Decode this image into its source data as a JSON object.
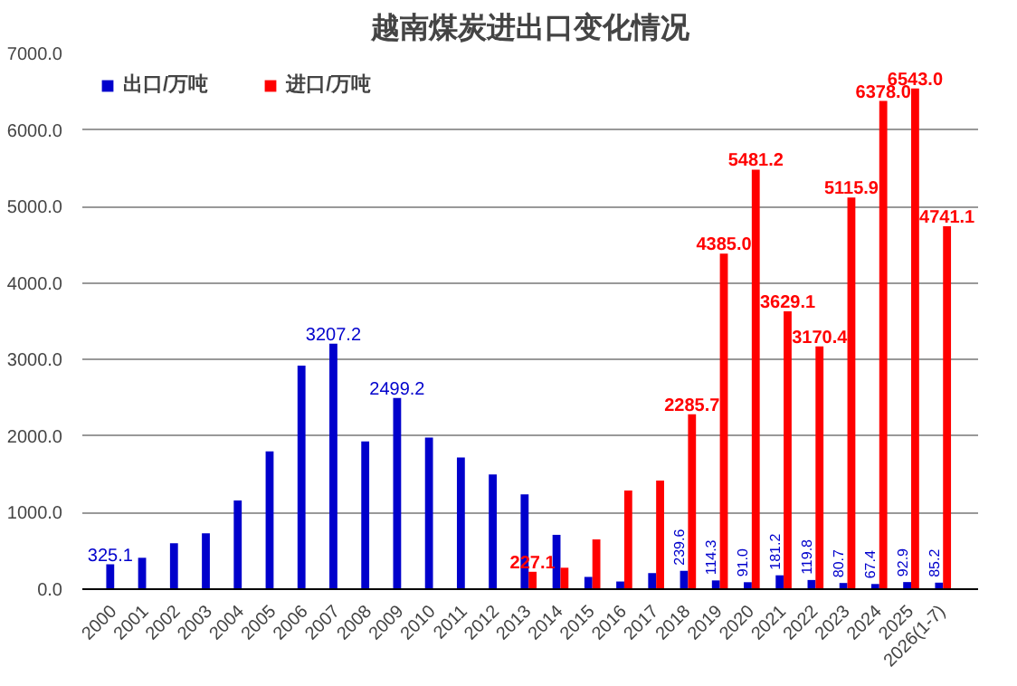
{
  "chart_data": {
    "type": "bar",
    "title": "越南煤炭进出口变化情况",
    "categories": [
      "2000",
      "2001",
      "2002",
      "2003",
      "2004",
      "2005",
      "2006",
      "2007",
      "2008",
      "2009",
      "2010",
      "2011",
      "2012",
      "2013",
      "2014",
      "2015",
      "2016",
      "2017",
      "2018",
      "2019",
      "2020",
      "2021",
      "2022",
      "2023",
      "2024",
      "2025",
      "2026(1-7)"
    ],
    "series": [
      {
        "name": "出口/万吨",
        "color": "#0000cc",
        "values": [
          325.1,
          410,
          600,
          730,
          1160,
          1800,
          2920,
          3207.2,
          1930,
          2499.2,
          1980,
          1720,
          1500,
          1240,
          710,
          160,
          100,
          210,
          239.6,
          114.3,
          91.0,
          181.2,
          119.8,
          80.7,
          67.4,
          92.9,
          85.2
        ],
        "value_labels": [
          "325.1",
          null,
          null,
          null,
          null,
          null,
          null,
          "3207.2",
          null,
          "2499.2",
          null,
          null,
          null,
          null,
          null,
          null,
          null,
          null,
          "239.6",
          "114.3",
          "91.0",
          "181.2",
          "119.8",
          "80.7",
          "67.4",
          "92.9",
          "85.2"
        ]
      },
      {
        "name": "进口/万吨",
        "color": "#ff0000",
        "values": [
          null,
          null,
          null,
          null,
          null,
          null,
          null,
          null,
          null,
          null,
          null,
          null,
          null,
          227.1,
          280,
          650,
          1290,
          1420,
          2285.7,
          4385.0,
          5481.2,
          3629.1,
          3170.4,
          5115.9,
          6378.0,
          6543.0,
          4741.1
        ],
        "value_labels": [
          null,
          null,
          null,
          null,
          null,
          null,
          null,
          null,
          null,
          null,
          null,
          null,
          null,
          "227.1",
          null,
          null,
          null,
          null,
          "2285.7",
          "4385.0",
          "5481.2",
          "3629.1",
          "3170.4",
          "5115.9",
          "6378.0",
          "6543.0",
          "4741.1"
        ]
      }
    ],
    "ylim": [
      0,
      7000
    ],
    "yticks": [
      {
        "value": 0,
        "label": "0.0"
      },
      {
        "value": 1000,
        "label": "1000.0"
      },
      {
        "value": 2000,
        "label": "2000.0"
      },
      {
        "value": 3000,
        "label": "3000.0"
      },
      {
        "value": 4000,
        "label": "4000.0"
      },
      {
        "value": 5000,
        "label": "5000.0"
      },
      {
        "value": 6000,
        "label": "6000.0"
      },
      {
        "value": 7000,
        "label": "7000.0"
      }
    ],
    "grid": "y",
    "legend": "top left"
  }
}
